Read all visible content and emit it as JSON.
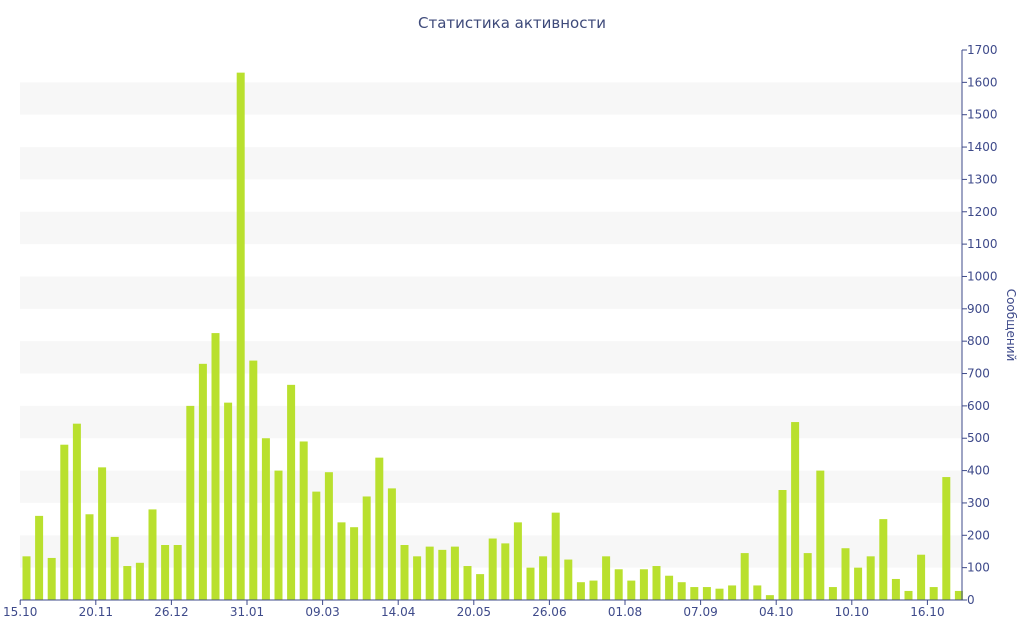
{
  "chart_data": {
    "type": "bar",
    "title": "Статистика активности",
    "xlabel": "",
    "ylabel": "Сообщений",
    "ylim": [
      0,
      1700
    ],
    "y_ticks": [
      0,
      100,
      200,
      300,
      400,
      500,
      600,
      700,
      800,
      900,
      1000,
      1100,
      1200,
      1300,
      1400,
      1500,
      1600,
      1700
    ],
    "y_axis_side": "right",
    "grid": "alternating horizontal bands",
    "legend": "none",
    "bar_color": "#b9e02e",
    "band_color": "#f7f7f7",
    "text_color": "#3e4a8a",
    "x_tick_labels": [
      {
        "label": "15.10",
        "index": -0.5
      },
      {
        "label": "20.11",
        "index": 5.5
      },
      {
        "label": "26.12",
        "index": 11.5
      },
      {
        "label": "31.01",
        "index": 17.5
      },
      {
        "label": "09.03",
        "index": 23.5
      },
      {
        "label": "14.04",
        "index": 29.5
      },
      {
        "label": "20.05",
        "index": 35.5
      },
      {
        "label": "26.06",
        "index": 41.5
      },
      {
        "label": "01.08",
        "index": 47.5
      },
      {
        "label": "07.09",
        "index": 53.5
      },
      {
        "label": "04.10",
        "index": 59.5
      },
      {
        "label": "10.10",
        "index": 65.5
      },
      {
        "label": "16.10",
        "index": 71.5
      }
    ],
    "values": [
      135,
      260,
      130,
      480,
      545,
      265,
      410,
      195,
      105,
      115,
      280,
      170,
      170,
      600,
      730,
      825,
      610,
      1630,
      740,
      500,
      400,
      665,
      490,
      335,
      395,
      240,
      225,
      320,
      440,
      345,
      170,
      135,
      165,
      155,
      165,
      105,
      80,
      190,
      175,
      240,
      100,
      135,
      270,
      125,
      55,
      60,
      135,
      95,
      60,
      95,
      105,
      75,
      55,
      40,
      40,
      35,
      45,
      145,
      45,
      15,
      340,
      550,
      145,
      400,
      40,
      160,
      100,
      135,
      250,
      65,
      28,
      140,
      40,
      380,
      28
    ]
  }
}
